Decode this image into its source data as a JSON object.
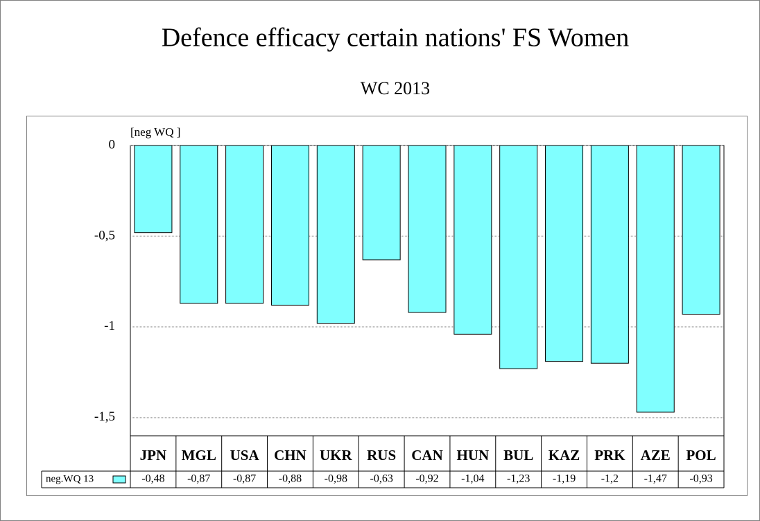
{
  "chart_data": {
    "type": "bar",
    "title": "Defence efficacy certain nations' FS Women",
    "subtitle": "WC 2013",
    "y_label": "[neg WQ ]",
    "categories": [
      "JPN",
      "MGL",
      "USA",
      "CHN",
      "UKR",
      "RUS",
      "CAN",
      "HUN",
      "BUL",
      "KAZ",
      "PRK",
      "AZE",
      "POL"
    ],
    "series": [
      {
        "name": "neg.WQ 13",
        "color": "#80ffff",
        "values": [
          -0.48,
          -0.87,
          -0.87,
          -0.88,
          -0.98,
          -0.63,
          -0.92,
          -1.04,
          -1.23,
          -1.19,
          -1.2,
          -1.47,
          -0.93
        ],
        "value_labels": [
          "-0,48",
          "-0,87",
          "-0,87",
          "-0,88",
          "-0,98",
          "-0,63",
          "-0,92",
          "-1,04",
          "-1,23",
          "-1,19",
          "-1,2",
          "-1,47",
          "-0,93"
        ]
      }
    ],
    "ylim": [
      -1.6,
      0
    ],
    "yticks": [
      0,
      {
        "value": -0.5,
        "label": "-0,5"
      },
      -1,
      {
        "value": -1.5,
        "label": "-1,5"
      }
    ],
    "grid": true
  }
}
